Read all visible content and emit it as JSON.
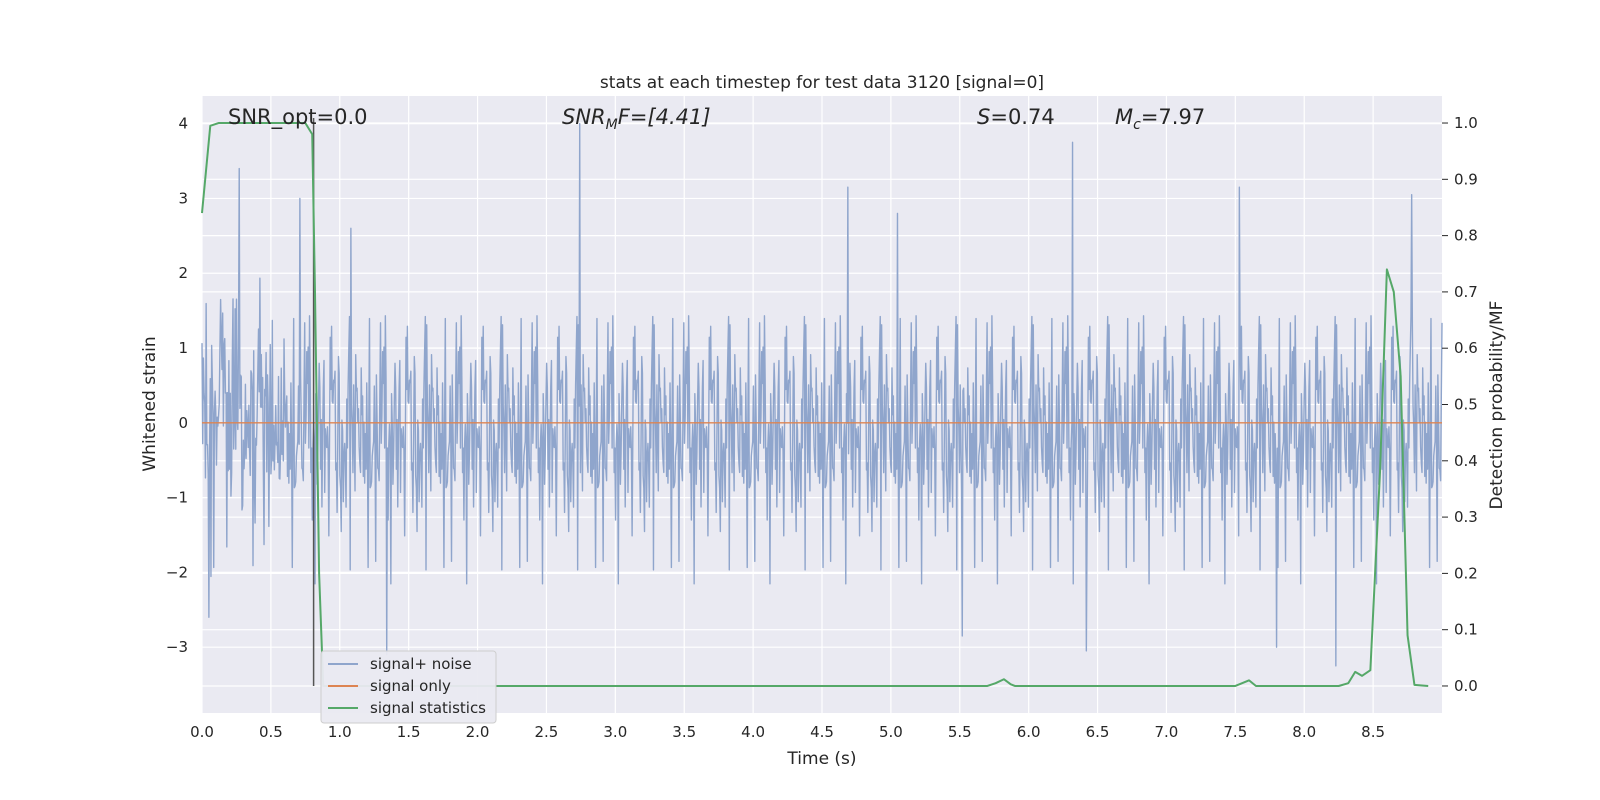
{
  "chart_data": {
    "type": "line",
    "title": "stats at each timestep for test data 3120 [signal=0]",
    "xlabel": "Time (s)",
    "ylabel": "Whitened strain",
    "y2label": "Detection probability/MF",
    "xlim": [
      0.0,
      9.0
    ],
    "ylim": [
      -3.88,
      4.37
    ],
    "y2lim": [
      -0.048,
      1.048
    ],
    "xticks": [
      "0.0",
      "0.5",
      "1.0",
      "1.5",
      "2.0",
      "2.5",
      "3.0",
      "3.5",
      "4.0",
      "4.5",
      "5.0",
      "5.5",
      "6.0",
      "6.5",
      "7.0",
      "7.5",
      "8.0",
      "8.5"
    ],
    "yticks": [
      "4",
      "3",
      "2",
      "1",
      "0",
      "−1",
      "−2",
      "−3"
    ],
    "y2ticks": [
      "1.0",
      "0.9",
      "0.8",
      "0.7",
      "0.6",
      "0.5",
      "0.4",
      "0.3",
      "0.2",
      "0.1",
      "0.0"
    ],
    "grid": true,
    "legend_position": "lower-left",
    "vline_x": 0.81,
    "annotations": {
      "snr_opt": "SNR_opt=0.0",
      "snr_mf_main": "SNR",
      "snr_mf_sub": "M",
      "snr_mf_rest": "F=[4.41]",
      "s_var": "S",
      "s_rest": "=0.74",
      "mc_main": "M",
      "mc_sub": "c",
      "mc_rest": "=7.97"
    },
    "series": [
      {
        "name": "signal+ noise",
        "color": "#8fa5cc",
        "description_only": false,
        "noise_sigma": 0.85,
        "peaks": [
          {
            "x": 0.27,
            "y": 3.4
          },
          {
            "x": 0.71,
            "y": 3.0
          },
          {
            "x": 1.08,
            "y": 2.6
          },
          {
            "x": 2.74,
            "y": 4.0
          },
          {
            "x": 4.69,
            "y": 3.15
          },
          {
            "x": 6.32,
            "y": 3.75
          },
          {
            "x": 5.05,
            "y": 2.8
          },
          {
            "x": 7.53,
            "y": 3.15
          },
          {
            "x": 8.78,
            "y": 3.05
          },
          {
            "x": 1.34,
            "y": -3.1
          },
          {
            "x": 6.42,
            "y": -3.05
          },
          {
            "x": 8.23,
            "y": -3.25
          },
          {
            "x": 5.52,
            "y": -2.85
          },
          {
            "x": 7.8,
            "y": -3.0
          },
          {
            "x": 0.05,
            "y": -2.6
          }
        ]
      },
      {
        "name": "signal only",
        "color": "#dd8452",
        "x": [
          0.0,
          9.0
        ],
        "y": [
          0.0,
          0.0
        ]
      },
      {
        "name": "signal statistics",
        "color": "#55a868",
        "axis": "right",
        "x": [
          0.0,
          0.06,
          0.12,
          0.3,
          0.6,
          0.75,
          0.8,
          0.82,
          0.85,
          0.88,
          0.95,
          5.7,
          5.76,
          5.82,
          5.87,
          5.9,
          6.4,
          7.5,
          7.56,
          7.6,
          7.65,
          8.25,
          8.32,
          8.37,
          8.42,
          8.48,
          8.55,
          8.6,
          8.65,
          8.7,
          8.75,
          8.8,
          8.9
        ],
        "y": [
          0.84,
          0.995,
          1.0,
          1.0,
          1.0,
          1.0,
          0.98,
          0.7,
          0.2,
          0.0,
          0.0,
          0.0,
          0.005,
          0.012,
          0.003,
          0.0,
          0.0,
          0.0,
          0.006,
          0.01,
          0.0,
          0.0,
          0.005,
          0.025,
          0.018,
          0.028,
          0.38,
          0.74,
          0.7,
          0.55,
          0.09,
          0.002,
          0.0
        ]
      }
    ]
  }
}
